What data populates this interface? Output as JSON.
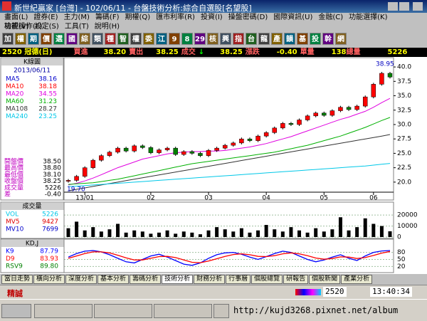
{
  "window": {
    "title": "新世紀贏家 [台灣] - 102/06/11 - 台盤技術分析:綜合自選股[名望股]"
  },
  "menu": [
    "畫面(L)",
    "證券(E)",
    "主力(M)",
    "籌碼(F)",
    "期權(Q)",
    "匯市利率(R)",
    "投資(I)",
    "操盤密碼(D)",
    "國際資訊(U)",
    "金融(C)",
    "功能選擇(K)",
    "功能操作(F)"
  ],
  "menu2": [
    "檢視(V)",
    "設定(S)",
    "工具(T)",
    "說明(H)"
  ],
  "toolbar": [
    "加",
    "權",
    "期",
    "價",
    "選",
    "國",
    "綜",
    "類",
    "種",
    "智",
    "權",
    "委",
    "江",
    "9",
    "8",
    "29",
    "核",
    "興",
    "指",
    "台",
    "龍",
    "產",
    "韻",
    "基",
    "投",
    "幹",
    "網"
  ],
  "quote": {
    "stock": "2520 冠德(日)",
    "bid_label": "買進",
    "bid": "38.20",
    "ask_label": "賣出",
    "ask": "38.25",
    "trade_label": "成交",
    "arrow": "↓",
    "trade": "38.25",
    "change_label": "漲跌",
    "change": "-0.40",
    "lot_label": "單量",
    "lot": "138",
    "total_label": "總量",
    "total": "5226"
  },
  "legend": {
    "header": "K線圖",
    "date": "2013/06/11",
    "ohlc": [
      {
        "name": "開盤價",
        "value": "38.50"
      },
      {
        "name": "最高價",
        "value": "38.80"
      },
      {
        "name": "最低價",
        "value": "38.10"
      },
      {
        "name": "收盤價",
        "value": "38.25"
      },
      {
        "name": "成交量",
        "value": "5226"
      },
      {
        "name": "差",
        "value": "-0.40"
      }
    ]
  },
  "chart_data": [
    {
      "type": "line",
      "x": [
        null,
        null,
        "13/01",
        null,
        null,
        null,
        null,
        null,
        null,
        null,
        "02",
        null,
        null,
        null,
        null,
        null,
        null,
        "03",
        null,
        null,
        null,
        null,
        null,
        null,
        "04",
        null,
        null,
        null,
        null,
        null,
        null,
        "05",
        null,
        null,
        null,
        null,
        null,
        "06",
        null,
        null
      ],
      "values": [
        20.3,
        21.0,
        22.5,
        23.8,
        24.6,
        25.2,
        25.9,
        25.4,
        26.3,
        26.0,
        25.1,
        25.6,
        25.9,
        24.8,
        25.3,
        25.0,
        24.6,
        25.5,
        25.9,
        26.4,
        26.8,
        27.5,
        27.2,
        28.0,
        28.6,
        29.4,
        30.2,
        30.0,
        30.8,
        31.5,
        32.0,
        31.6,
        32.4,
        33.0,
        32.6,
        33.2,
        34.8,
        37.0,
        38.9,
        38.25
      ],
      "series": [
        {
          "name": "MA5",
          "value": "38.16",
          "color": "#0000cc"
        },
        {
          "name": "MA10",
          "value": "38.18",
          "color": "#ff0000"
        },
        {
          "name": "MA20",
          "value": "34.55",
          "color": "#e000e0",
          "values": [
            19.5,
            19.8,
            20.2,
            20.7,
            21.3,
            21.9,
            22.5,
            23.0,
            23.5,
            24.0,
            24.3,
            24.6,
            24.9,
            25.1,
            25.2,
            25.3,
            25.3,
            25.4,
            25.4,
            25.5,
            25.7,
            25.9,
            26.1,
            26.4,
            26.7,
            27.1,
            27.5,
            27.9,
            28.4,
            28.9,
            29.4,
            29.9,
            30.4,
            30.9,
            31.3,
            31.8,
            32.3,
            33.0,
            33.8,
            34.55
          ]
        },
        {
          "name": "MA60",
          "value": "31.23",
          "color": "#00b000",
          "values": [
            19.6,
            19.7,
            19.8,
            19.9,
            20.1,
            20.3,
            20.5,
            20.8,
            21.1,
            21.4,
            21.7,
            22.0,
            22.3,
            22.6,
            22.9,
            23.2,
            23.4,
            23.6,
            23.8,
            24.0,
            24.2,
            24.4,
            24.6,
            24.8,
            25.0,
            25.2,
            25.5,
            25.8,
            26.1,
            26.4,
            26.8,
            27.2,
            27.6,
            28.0,
            28.5,
            29.0,
            29.5,
            30.1,
            30.7,
            31.23
          ]
        },
        {
          "name": "MA108",
          "value": "28.27",
          "color": "#333333",
          "values": [
            18.5,
            18.75,
            19.0,
            19.25,
            19.5,
            19.75,
            20.0,
            20.25,
            20.5,
            20.75,
            21.0,
            21.25,
            21.5,
            21.75,
            22.0,
            22.25,
            22.5,
            22.75,
            23.0,
            23.25,
            23.5,
            23.75,
            24.0,
            24.25,
            24.5,
            24.75,
            25.0,
            25.25,
            25.5,
            25.75,
            26.0,
            26.25,
            26.5,
            26.75,
            27.0,
            27.25,
            27.5,
            27.75,
            28.0,
            28.27
          ]
        },
        {
          "name": "MA240",
          "value": "23.25",
          "color": "#00c8e8",
          "values": [
            19.2,
            19.3,
            19.4,
            19.5,
            19.6,
            19.7,
            19.8,
            19.9,
            20.0,
            20.1,
            20.2,
            20.3,
            20.4,
            20.5,
            20.6,
            20.7,
            20.8,
            20.9,
            21.0,
            21.1,
            21.2,
            21.3,
            21.4,
            21.5,
            21.6,
            21.7,
            21.8,
            21.9,
            22.0,
            22.1,
            22.2,
            22.3,
            22.4,
            22.5,
            22.6,
            22.7,
            22.8,
            22.95,
            23.1,
            23.25
          ]
        }
      ],
      "ylim": [
        18.5,
        41
      ],
      "yticks": [
        {
          "value": 20,
          "label": "20.0"
        },
        22.5,
        {
          "value": 25,
          "label": "25.0"
        },
        27.5,
        {
          "value": 30,
          "label": "30.0"
        },
        32.5,
        {
          "value": 35,
          "label": "35.0"
        },
        37.5,
        {
          "value": 40,
          "label": "40.0"
        }
      ],
      "high_label": "38.95",
      "low_label": "19.70",
      "up_color": "#ff0000",
      "down_color": "#008000"
    },
    {
      "type": "bar",
      "title": "成交量",
      "color": "#000000",
      "values": [
        8000,
        14000,
        6000,
        9000,
        5000,
        7000,
        12000,
        4000,
        6000,
        5000,
        3000,
        4000,
        6000,
        3000,
        5000,
        4000,
        2500,
        6000,
        9000,
        7000,
        5000,
        8000,
        4000,
        6000,
        11000,
        7000,
        5000,
        9000,
        6000,
        4000,
        8000,
        5000,
        7000,
        18000,
        6000,
        9000,
        17000,
        12000,
        10000,
        5226
      ],
      "legend": [
        {
          "name": "VOL",
          "value": "5226",
          "color": "#00c8e8"
        },
        {
          "name": "MV5",
          "value": "9427",
          "color": "#e00000"
        },
        {
          "name": "MV10",
          "value": "7699",
          "color": "#0000cc"
        }
      ],
      "ylim": [
        0,
        24000
      ],
      "yticks": [
        0,
        10000,
        20000
      ]
    },
    {
      "type": "line",
      "title": "KD,J",
      "series": [
        {
          "name": "K9",
          "value": "87.79",
          "color": "#0000ff",
          "values": [
            60,
            75,
            85,
            88,
            82,
            70,
            55,
            40,
            35,
            50,
            65,
            72,
            60,
            45,
            30,
            25,
            35,
            55,
            70,
            78,
            80,
            72,
            60,
            50,
            62,
            75,
            85,
            80,
            65,
            50,
            40,
            48,
            60,
            70,
            55,
            45,
            65,
            80,
            86,
            87.79
          ]
        },
        {
          "name": "D9",
          "value": "83.93",
          "color": "#ff0000",
          "values": [
            55,
            65,
            75,
            82,
            82,
            78,
            68,
            57,
            48,
            48,
            55,
            62,
            63,
            58,
            48,
            38,
            36,
            43,
            53,
            63,
            71,
            74,
            70,
            63,
            62,
            66,
            74,
            78,
            74,
            66,
            56,
            51,
            54,
            61,
            60,
            54,
            58,
            67,
            77,
            83.93
          ]
        },
        {
          "name": "RSV9",
          "value": "89.80",
          "color": "#008000"
        }
      ],
      "ylim": [
        0,
        100
      ],
      "yticks": [
        20,
        50,
        80
      ]
    }
  ],
  "tabs": [
    "當日走勢",
    "橫向分析",
    "深度分析",
    "基本分析",
    "籌碼分析",
    "技術分析",
    "財務分析",
    "行事曆",
    "個股總覽",
    "研報告",
    "個股新聞",
    "產業分析"
  ],
  "status": {
    "brand": "精誠",
    "code": "2520",
    "time": "13:40:34"
  },
  "watermark": "http://kujd3268.pixnet.net/album"
}
